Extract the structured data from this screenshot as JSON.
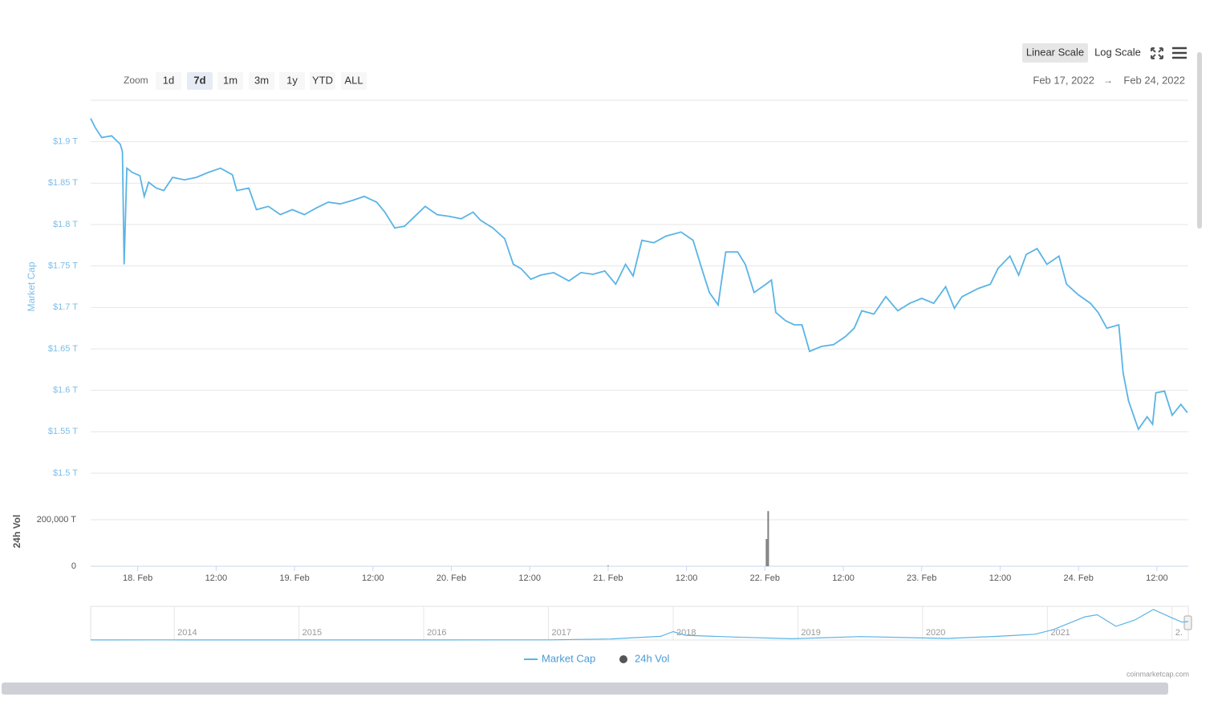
{
  "ui": {
    "zoom_label": "Zoom",
    "zoom_buttons": [
      "1d",
      "7d",
      "1m",
      "3m",
      "1y",
      "YTD",
      "ALL"
    ],
    "zoom_selected": "7d",
    "scale_buttons": [
      "Linear Scale",
      "Log Scale"
    ],
    "scale_selected": "Linear Scale",
    "range_from": "Feb 17, 2022",
    "range_arrow": "→",
    "range_to": "Feb 24, 2022",
    "credits": "coinmarketcap.com"
  },
  "chart_data": [
    {
      "type": "line",
      "ylabel": "Market Cap",
      "grid": true,
      "x": [
        "2022-02-17T16:48",
        "2022-02-17T17:30",
        "2022-02-17T18:30",
        "2022-02-17T20:00",
        "2022-02-17T21:20",
        "2022-02-17T21:40",
        "2022-02-17T21:55",
        "2022-02-17T22:20",
        "2022-02-17T23:10",
        "2022-02-18T00:20",
        "2022-02-18T01:00",
        "2022-02-18T01:40",
        "2022-02-18T02:50",
        "2022-02-18T04:00",
        "2022-02-18T05:20",
        "2022-02-18T07:10",
        "2022-02-18T09:00",
        "2022-02-18T10:50",
        "2022-02-18T12:40",
        "2022-02-18T14:30",
        "2022-02-18T15:10",
        "2022-02-18T17:00",
        "2022-02-18T18:10",
        "2022-02-18T20:00",
        "2022-02-18T21:50",
        "2022-02-18T23:40",
        "2022-02-19T01:30",
        "2022-02-19T03:20",
        "2022-02-19T05:10",
        "2022-02-19T07:00",
        "2022-02-19T08:50",
        "2022-02-19T10:40",
        "2022-02-19T12:35",
        "2022-02-19T13:50",
        "2022-02-19T15:20",
        "2022-02-19T16:50",
        "2022-02-19T18:10",
        "2022-02-19T20:00",
        "2022-02-19T21:50",
        "2022-02-19T23:40",
        "2022-02-20T01:30",
        "2022-02-20T03:20",
        "2022-02-20T04:30",
        "2022-02-20T06:20",
        "2022-02-20T08:10",
        "2022-02-20T09:30",
        "2022-02-20T10:40",
        "2022-02-20T12:10",
        "2022-02-20T13:40",
        "2022-02-20T15:40",
        "2022-02-20T18:00",
        "2022-02-20T19:50",
        "2022-02-20T21:40",
        "2022-02-20T23:30",
        "2022-02-21T01:10",
        "2022-02-21T02:40",
        "2022-02-21T03:50",
        "2022-02-21T05:10",
        "2022-02-21T07:00",
        "2022-02-21T08:50",
        "2022-02-21T11:10",
        "2022-02-21T13:00",
        "2022-02-21T14:20",
        "2022-02-21T15:30",
        "2022-02-21T16:50",
        "2022-02-21T18:00",
        "2022-02-21T19:50",
        "2022-02-21T21:00",
        "2022-02-21T22:20",
        "2022-02-22T00:10",
        "2022-02-22T01:00",
        "2022-02-22T01:40",
        "2022-02-22T03:10",
        "2022-02-22T04:30",
        "2022-02-22T05:40",
        "2022-02-22T06:50",
        "2022-02-22T08:40",
        "2022-02-22T10:30",
        "2022-02-22T12:20",
        "2022-02-22T13:40",
        "2022-02-22T14:50",
        "2022-02-22T16:40",
        "2022-02-22T18:30",
        "2022-02-22T20:20",
        "2022-02-22T22:10",
        "2022-02-23T00:00",
        "2022-02-23T01:50",
        "2022-02-23T03:40",
        "2022-02-23T05:00",
        "2022-02-23T06:10",
        "2022-02-23T08:40",
        "2022-02-23T10:30",
        "2022-02-23T11:40",
        "2022-02-23T13:30",
        "2022-02-23T14:50",
        "2022-02-23T16:00",
        "2022-02-23T17:40",
        "2022-02-23T19:10",
        "2022-02-23T21:00",
        "2022-02-23T22:10",
        "2022-02-24T00:00",
        "2022-02-24T01:50",
        "2022-02-24T03:00",
        "2022-02-24T04:20",
        "2022-02-24T06:10",
        "2022-02-24T06:50",
        "2022-02-24T07:40",
        "2022-02-24T09:10",
        "2022-02-24T10:30",
        "2022-02-24T11:20",
        "2022-02-24T11:50",
        "2022-02-24T13:10",
        "2022-02-24T14:20",
        "2022-02-24T15:40",
        "2022-02-24T16:40"
      ],
      "series": [
        {
          "name": "Market Cap",
          "color": "#5ab4e5",
          "values": [
            1.928,
            1.917,
            1.905,
            1.907,
            1.897,
            1.888,
            1.752,
            1.868,
            1.863,
            1.859,
            1.834,
            1.851,
            1.844,
            1.841,
            1.857,
            1.854,
            1.857,
            1.863,
            1.868,
            1.86,
            1.841,
            1.844,
            1.818,
            1.822,
            1.812,
            1.818,
            1.812,
            1.82,
            1.827,
            1.825,
            1.829,
            1.834,
            1.827,
            1.815,
            1.796,
            1.798,
            1.808,
            1.822,
            1.812,
            1.81,
            1.807,
            1.815,
            1.805,
            1.796,
            1.783,
            1.752,
            1.747,
            1.734,
            1.739,
            1.742,
            1.732,
            1.742,
            1.74,
            1.744,
            1.728,
            1.752,
            1.738,
            1.781,
            1.778,
            1.786,
            1.791,
            1.781,
            1.747,
            1.718,
            1.703,
            1.767,
            1.767,
            1.752,
            1.718,
            1.728,
            1.733,
            1.694,
            1.684,
            1.679,
            1.679,
            1.647,
            1.653,
            1.655,
            1.665,
            1.675,
            1.696,
            1.692,
            1.713,
            1.696,
            1.705,
            1.711,
            1.705,
            1.725,
            1.699,
            1.713,
            1.723,
            1.728,
            1.747,
            1.762,
            1.739,
            1.764,
            1.771,
            1.752,
            1.762,
            1.728,
            1.715,
            1.705,
            1.694,
            1.675,
            1.679,
            1.621,
            1.587,
            1.553,
            1.568,
            1.559,
            1.597,
            1.599,
            1.57,
            1.583,
            1.573
          ]
        }
      ],
      "xlim": [
        "2022-02-17T16:48",
        "2022-02-24T16:48"
      ],
      "xticks": [
        {
          "value": "2022-02-18T00:00",
          "label": "18. Feb"
        },
        {
          "value": "2022-02-18T12:00",
          "label": "12:00"
        },
        {
          "value": "2022-02-19T00:00",
          "label": "19. Feb"
        },
        {
          "value": "2022-02-19T12:00",
          "label": "12:00"
        },
        {
          "value": "2022-02-20T00:00",
          "label": "20. Feb"
        },
        {
          "value": "2022-02-20T12:00",
          "label": "12:00"
        },
        {
          "value": "2022-02-21T00:00",
          "label": "21. Feb"
        },
        {
          "value": "2022-02-21T12:00",
          "label": "12:00"
        },
        {
          "value": "2022-02-22T00:00",
          "label": "22. Feb"
        },
        {
          "value": "2022-02-22T12:00",
          "label": "12:00"
        },
        {
          "value": "2022-02-23T00:00",
          "label": "23. Feb"
        },
        {
          "value": "2022-02-23T12:00",
          "label": "12:00"
        },
        {
          "value": "2022-02-24T00:00",
          "label": "24. Feb"
        },
        {
          "value": "2022-02-24T12:00",
          "label": "12:00"
        }
      ],
      "ylim": [
        1.5,
        1.95
      ],
      "yticks": [
        {
          "value": 1.5,
          "label": "$1.5 T"
        },
        {
          "value": 1.55,
          "label": "$1.55 T"
        },
        {
          "value": 1.6,
          "label": "$1.6 T"
        },
        {
          "value": 1.65,
          "label": "$1.65 T"
        },
        {
          "value": 1.7,
          "label": "$1.7 T"
        },
        {
          "value": 1.75,
          "label": "$1.75 T"
        },
        {
          "value": 1.8,
          "label": "$1.8 T"
        },
        {
          "value": 1.85,
          "label": "$1.85 T"
        },
        {
          "value": 1.9,
          "label": "$1.9 T"
        }
      ]
    },
    {
      "type": "bar",
      "ylabel": "24h Vol",
      "grid": true,
      "x": [
        "2022-02-21T00:00",
        "2022-02-22T00:15",
        "2022-02-22T00:30"
      ],
      "series": [
        {
          "name": "24h Vol",
          "color": "#808080",
          "values": [
            3000,
            117000,
            237000
          ]
        }
      ],
      "xlim": [
        "2022-02-17T16:48",
        "2022-02-24T16:48"
      ],
      "ylim": [
        0,
        300000
      ],
      "yticks": [
        0,
        {
          "value": 200000,
          "label": "200,000 T"
        }
      ]
    },
    {
      "type": "line",
      "x": [
        2013.33,
        2013.9,
        2014.1,
        2015.0,
        2016.0,
        2017.0,
        2017.5,
        2017.9,
        2018.0,
        2018.1,
        2018.5,
        2018.95,
        2019.5,
        2020.0,
        2020.2,
        2020.6,
        2020.9,
        2021.05,
        2021.3,
        2021.4,
        2021.55,
        2021.7,
        2021.85,
        2022.0,
        2022.08,
        2022.13
      ],
      "series": [
        {
          "name": "Market Cap",
          "color": "#5ab4e5",
          "values": [
            0.01,
            0.013,
            0.01,
            0.004,
            0.007,
            0.018,
            0.1,
            0.35,
            0.8,
            0.45,
            0.28,
            0.12,
            0.33,
            0.2,
            0.15,
            0.35,
            0.55,
            1.0,
            2.2,
            2.4,
            1.3,
            1.9,
            2.9,
            2.1,
            1.7,
            1.75
          ]
        }
      ],
      "xlim": [
        2013.33,
        2022.13
      ],
      "xticks": [
        2014,
        2015,
        2016,
        2017,
        2018,
        2019,
        2020,
        2021,
        {
          "value": 2022,
          "label": "2."
        }
      ],
      "ylim": [
        0,
        3.2
      ]
    }
  ]
}
